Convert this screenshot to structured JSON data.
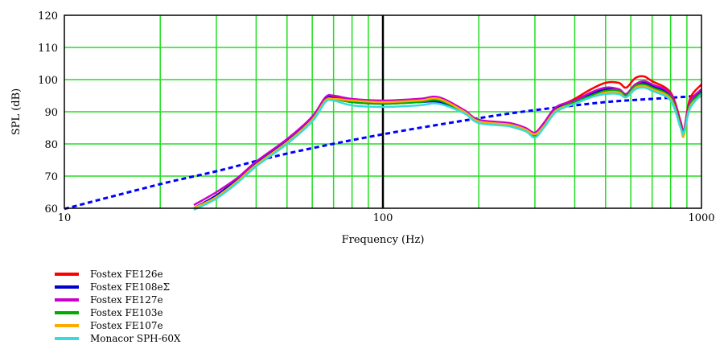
{
  "chart_data": {
    "type": "line",
    "title": "",
    "xlabel": "Frequency (Hz)",
    "ylabel": "SPL (dB)",
    "x_scale": "log",
    "xlim": [
      10,
      1000
    ],
    "ylim": [
      60,
      120
    ],
    "grid": true,
    "legend_position": "bottom-left",
    "x_ticks": [
      "10",
      "100",
      "1000"
    ],
    "y_ticks": [
      "60",
      "70",
      "80",
      "90",
      "100",
      "110",
      "120"
    ],
    "colors": {
      "grid": "#22dd22",
      "decade_line": "#000000",
      "reference": "#0000ff"
    },
    "reference_curve": {
      "style": "dashed",
      "color": "#0000ff",
      "points": [
        [
          10,
          59.8
        ],
        [
          20,
          67.5
        ],
        [
          30,
          71.5
        ],
        [
          50,
          77.0
        ],
        [
          100,
          83.0
        ],
        [
          200,
          88.0
        ],
        [
          300,
          90.5
        ],
        [
          500,
          93.0
        ],
        [
          700,
          94.0
        ],
        [
          1000,
          95.0
        ]
      ]
    },
    "series": [
      {
        "name": "Fostex FE126e",
        "color": "#ff0000",
        "points": [
          [
            25.5,
            60
          ],
          [
            30,
            64
          ],
          [
            35,
            69
          ],
          [
            40,
            74
          ],
          [
            50,
            81
          ],
          [
            60,
            88
          ],
          [
            66,
            94
          ],
          [
            70,
            94.5
          ],
          [
            80,
            93.5
          ],
          [
            100,
            93.0
          ],
          [
            130,
            94.0
          ],
          [
            150,
            93.8
          ],
          [
            180,
            90.0
          ],
          [
            200,
            87.0
          ],
          [
            250,
            86.0
          ],
          [
            280,
            84.5
          ],
          [
            300,
            83.0
          ],
          [
            320,
            86.0
          ],
          [
            350,
            91.0
          ],
          [
            400,
            94.0
          ],
          [
            450,
            97.0
          ],
          [
            500,
            99.0
          ],
          [
            550,
            99.0
          ],
          [
            580,
            97.5
          ],
          [
            620,
            100.5
          ],
          [
            660,
            101.0
          ],
          [
            700,
            99.5
          ],
          [
            800,
            96.0
          ],
          [
            860,
            87.0
          ],
          [
            880,
            84.0
          ],
          [
            920,
            94.0
          ],
          [
            1000,
            98.5
          ]
        ]
      },
      {
        "name": "Fostex FE108eΣ",
        "color": "#0000cc",
        "points": [
          [
            25.5,
            60
          ],
          [
            30,
            64
          ],
          [
            35,
            69
          ],
          [
            40,
            74
          ],
          [
            50,
            81
          ],
          [
            60,
            88
          ],
          [
            66,
            94
          ],
          [
            70,
            94.2
          ],
          [
            80,
            93.0
          ],
          [
            100,
            92.5
          ],
          [
            130,
            93.0
          ],
          [
            150,
            93.0
          ],
          [
            180,
            90.0
          ],
          [
            200,
            87.0
          ],
          [
            250,
            86.0
          ],
          [
            280,
            84.5
          ],
          [
            300,
            83.0
          ],
          [
            320,
            86.0
          ],
          [
            350,
            91.0
          ],
          [
            400,
            93.5
          ],
          [
            450,
            95.5
          ],
          [
            500,
            97.0
          ],
          [
            550,
            97.0
          ],
          [
            580,
            95.5
          ],
          [
            620,
            98.5
          ],
          [
            660,
            99.0
          ],
          [
            700,
            98.0
          ],
          [
            800,
            95.0
          ],
          [
            860,
            86.0
          ],
          [
            880,
            83.5
          ],
          [
            920,
            92.5
          ],
          [
            1000,
            96.5
          ]
        ]
      },
      {
        "name": "Fostex FE127e",
        "color": "#cc00cc",
        "points": [
          [
            25.5,
            61
          ],
          [
            30,
            65
          ],
          [
            35,
            69.5
          ],
          [
            40,
            74.5
          ],
          [
            50,
            81.5
          ],
          [
            60,
            88.5
          ],
          [
            66,
            94.5
          ],
          [
            70,
            95.0
          ],
          [
            80,
            94.0
          ],
          [
            100,
            93.5
          ],
          [
            130,
            94.0
          ],
          [
            150,
            94.5
          ],
          [
            180,
            90.5
          ],
          [
            200,
            87.5
          ],
          [
            250,
            86.5
          ],
          [
            280,
            85.0
          ],
          [
            300,
            83.5
          ],
          [
            320,
            86.5
          ],
          [
            350,
            91.5
          ],
          [
            400,
            93.5
          ],
          [
            450,
            96.0
          ],
          [
            500,
            97.5
          ],
          [
            550,
            97.0
          ],
          [
            580,
            95.5
          ],
          [
            620,
            98.5
          ],
          [
            660,
            99.5
          ],
          [
            700,
            98.5
          ],
          [
            800,
            95.5
          ],
          [
            860,
            86.5
          ],
          [
            880,
            84.0
          ],
          [
            920,
            93.0
          ],
          [
            1000,
            97.0
          ]
        ]
      },
      {
        "name": "Fostex FE103e",
        "color": "#00aa00",
        "points": [
          [
            25.5,
            60
          ],
          [
            30,
            63.5
          ],
          [
            35,
            68.5
          ],
          [
            40,
            73.5
          ],
          [
            50,
            80.5
          ],
          [
            60,
            87.5
          ],
          [
            66,
            93.5
          ],
          [
            70,
            94.0
          ],
          [
            80,
            93.0
          ],
          [
            100,
            92.5
          ],
          [
            130,
            93.0
          ],
          [
            150,
            93.5
          ],
          [
            180,
            90.0
          ],
          [
            200,
            87.0
          ],
          [
            250,
            85.5
          ],
          [
            280,
            84.0
          ],
          [
            300,
            82.5
          ],
          [
            320,
            85.5
          ],
          [
            350,
            90.5
          ],
          [
            400,
            93.0
          ],
          [
            450,
            95.0
          ],
          [
            500,
            96.5
          ],
          [
            550,
            96.5
          ],
          [
            580,
            95.0
          ],
          [
            620,
            98.0
          ],
          [
            660,
            98.5
          ],
          [
            700,
            97.5
          ],
          [
            800,
            94.5
          ],
          [
            860,
            85.5
          ],
          [
            880,
            83.0
          ],
          [
            920,
            92.0
          ],
          [
            1000,
            96.0
          ]
        ]
      },
      {
        "name": "Fostex FE107e",
        "color": "#ffaa00",
        "points": [
          [
            25.5,
            60
          ],
          [
            30,
            63.5
          ],
          [
            35,
            68.5
          ],
          [
            40,
            73.5
          ],
          [
            50,
            80.5
          ],
          [
            60,
            87.5
          ],
          [
            66,
            93.5
          ],
          [
            70,
            94.0
          ],
          [
            80,
            93.5
          ],
          [
            100,
            93.0
          ],
          [
            130,
            93.5
          ],
          [
            150,
            94.0
          ],
          [
            180,
            90.0
          ],
          [
            200,
            87.0
          ],
          [
            250,
            86.0
          ],
          [
            280,
            84.5
          ],
          [
            300,
            83.0
          ],
          [
            320,
            85.5
          ],
          [
            350,
            90.5
          ],
          [
            400,
            92.5
          ],
          [
            450,
            94.5
          ],
          [
            500,
            96.0
          ],
          [
            550,
            96.0
          ],
          [
            580,
            94.5
          ],
          [
            620,
            97.5
          ],
          [
            660,
            98.0
          ],
          [
            700,
            97.0
          ],
          [
            800,
            94.0
          ],
          [
            860,
            85.0
          ],
          [
            880,
            82.5
          ],
          [
            920,
            91.5
          ],
          [
            1000,
            95.0
          ]
        ]
      },
      {
        "name": "Monacor SPH-60X",
        "color": "#33dddd",
        "points": [
          [
            25.5,
            59.5
          ],
          [
            30,
            63.0
          ],
          [
            35,
            68.0
          ],
          [
            40,
            73.0
          ],
          [
            50,
            80.0
          ],
          [
            60,
            87.0
          ],
          [
            66,
            93.0
          ],
          [
            70,
            93.5
          ],
          [
            80,
            92.0
          ],
          [
            100,
            91.5
          ],
          [
            130,
            92.0
          ],
          [
            150,
            92.5
          ],
          [
            180,
            89.5
          ],
          [
            200,
            86.5
          ],
          [
            250,
            85.5
          ],
          [
            280,
            84.0
          ],
          [
            300,
            82.0
          ],
          [
            320,
            85.0
          ],
          [
            350,
            90.0
          ],
          [
            400,
            92.5
          ],
          [
            450,
            94.5
          ],
          [
            500,
            95.5
          ],
          [
            550,
            95.5
          ],
          [
            580,
            94.5
          ],
          [
            620,
            97.0
          ],
          [
            660,
            97.5
          ],
          [
            700,
            96.5
          ],
          [
            800,
            93.5
          ],
          [
            860,
            85.0
          ],
          [
            880,
            83.5
          ],
          [
            920,
            91.0
          ],
          [
            1000,
            95.5
          ]
        ]
      }
    ]
  }
}
